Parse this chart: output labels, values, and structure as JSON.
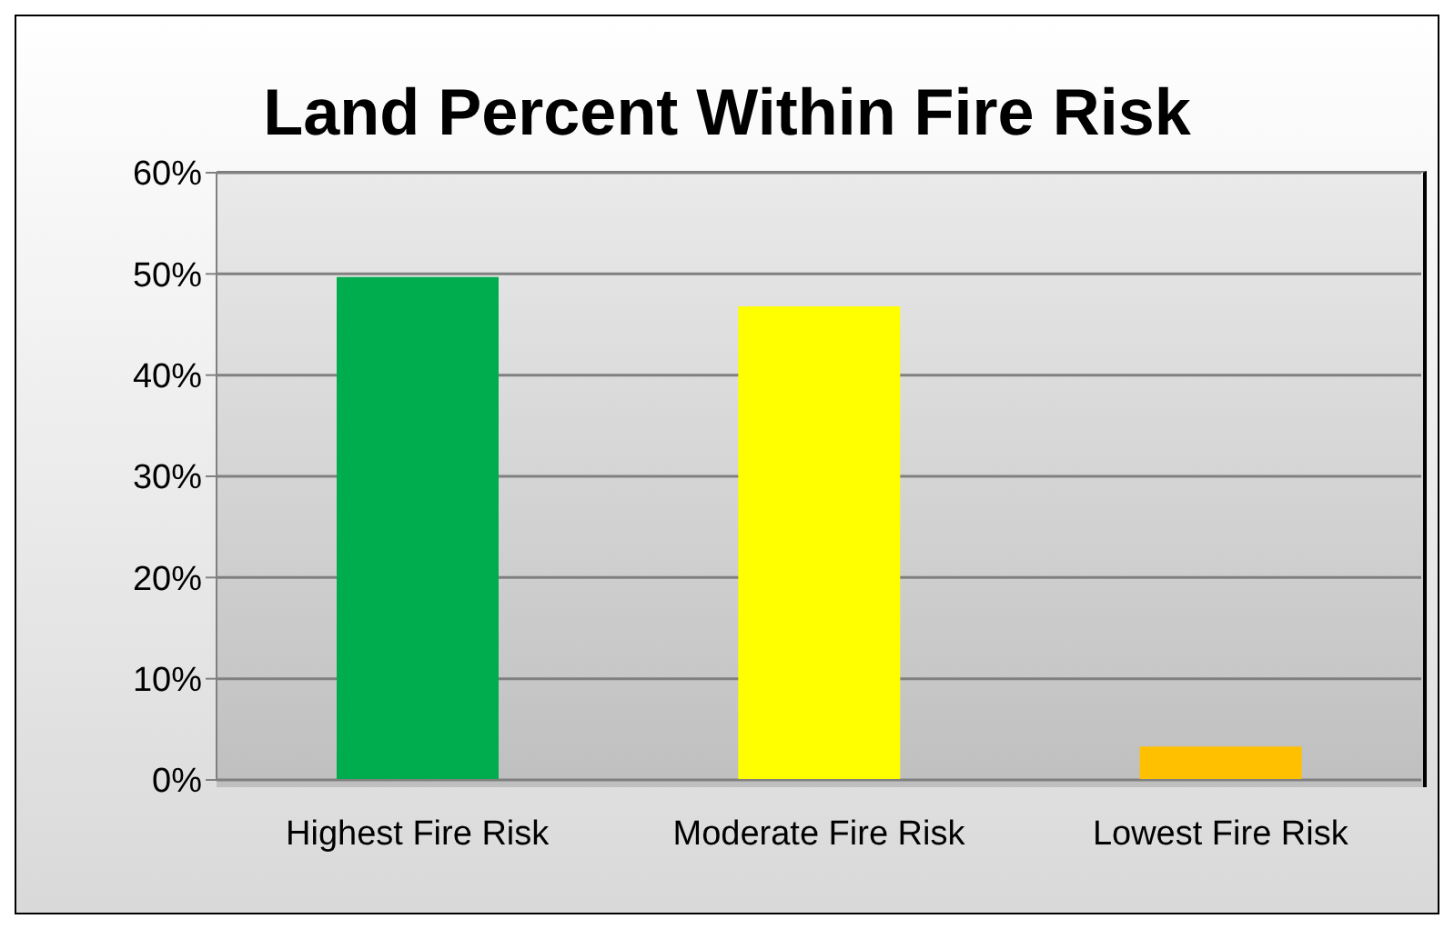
{
  "chart_data": {
    "type": "bar",
    "title": "Land Percent Within Fire Risk",
    "categories": [
      "Highest Fire Risk",
      "Moderate Fire Risk",
      "Lowest Fire Risk"
    ],
    "values": [
      49.7,
      46.8,
      3.3
    ],
    "colors": [
      "#00ad4e",
      "#ffff00",
      "#ffc000"
    ],
    "ylim": [
      0,
      60
    ],
    "yticks": [
      {
        "value": 0,
        "label": "0%"
      },
      {
        "value": 10,
        "label": "10%"
      },
      {
        "value": 20,
        "label": "20%"
      },
      {
        "value": 30,
        "label": "30%"
      },
      {
        "value": 40,
        "label": "40%"
      },
      {
        "value": 50,
        "label": "50%"
      },
      {
        "value": 60,
        "label": "60%"
      }
    ],
    "grid": "y",
    "legend": false
  }
}
